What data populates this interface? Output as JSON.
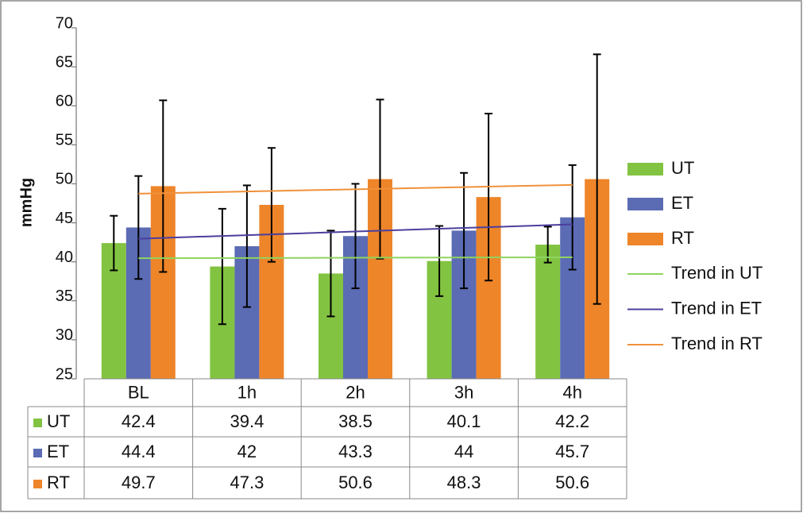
{
  "chart_data": {
    "type": "bar",
    "y_label": "mmHg",
    "categories": [
      "BL",
      "1h",
      "2h",
      "3h",
      "4h"
    ],
    "series": [
      {
        "name": "UT",
        "color": "#82c341",
        "values": [
          42.4,
          39.4,
          38.5,
          40.1,
          42.2
        ],
        "errors": [
          3.5,
          7.4,
          5.5,
          4.5,
          2.3
        ]
      },
      {
        "name": "ET",
        "color": "#5b6bb4",
        "values": [
          44.4,
          42,
          43.3,
          44,
          45.7
        ],
        "errors": [
          6.6,
          7.8,
          6.7,
          7.4,
          6.7
        ]
      },
      {
        "name": "RT",
        "color": "#ee8529",
        "values": [
          49.7,
          47.3,
          50.6,
          48.3,
          50.6
        ],
        "errors": [
          11,
          7.3,
          10.2,
          10.7,
          16
        ]
      }
    ],
    "trend_series": [
      {
        "name": "Trend in UT",
        "color": "#8fd460",
        "values": [
          40.46,
          40.49,
          40.52,
          40.55,
          40.58
        ]
      },
      {
        "name": "Trend in ET",
        "color": "#4b3f9e",
        "values": [
          42.96,
          43.42,
          43.88,
          44.34,
          44.8
        ]
      },
      {
        "name": "Trend in RT",
        "color": "#f0913a",
        "values": [
          48.74,
          49.02,
          49.3,
          49.58,
          49.86
        ]
      }
    ],
    "ylim": [
      25,
      70
    ],
    "yticks": [
      25,
      30,
      35,
      40,
      45,
      50,
      55,
      60,
      65,
      70
    ],
    "legend": "right"
  }
}
